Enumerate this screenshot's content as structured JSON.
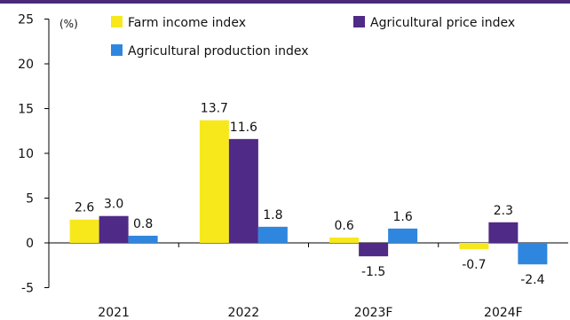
{
  "chart_data": {
    "type": "bar",
    "unit_label": "(%)",
    "categories": [
      "2021",
      "2022",
      "2023F",
      "2024F"
    ],
    "series": [
      {
        "name": "Farm income index",
        "color": "#f7e81c",
        "values": [
          2.6,
          13.7,
          0.6,
          -0.7
        ]
      },
      {
        "name": "Agricultural price index",
        "color": "#4f2a86",
        "values": [
          3.0,
          11.6,
          -1.5,
          2.3
        ]
      },
      {
        "name": "Agricultural production index",
        "color": "#2f86de",
        "values": [
          0.8,
          1.8,
          1.6,
          -2.4
        ]
      }
    ],
    "ylim": [
      -5,
      25
    ],
    "yticks": [
      -5,
      0,
      5,
      10,
      15,
      20,
      25
    ],
    "legend_position": "top",
    "grid": false
  }
}
